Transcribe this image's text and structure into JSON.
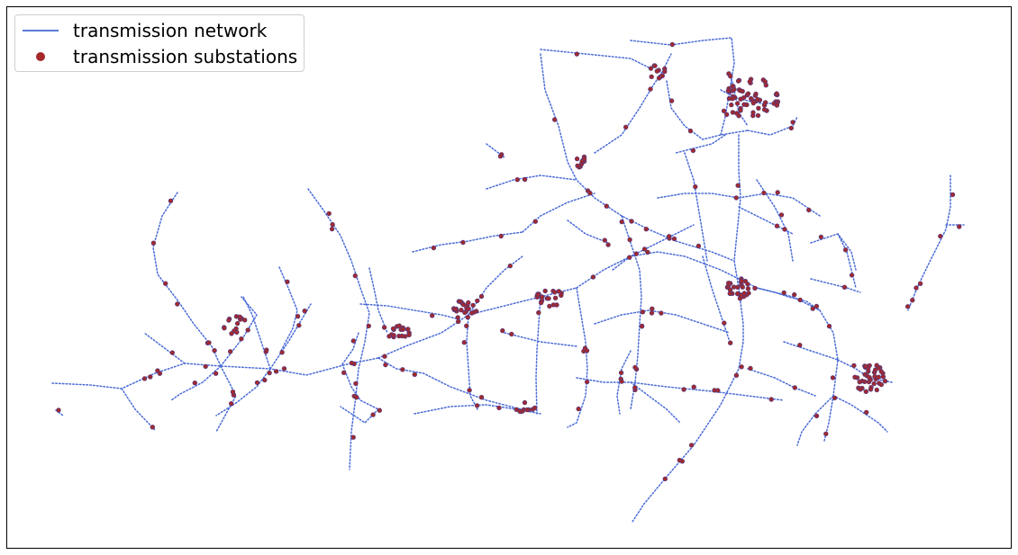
{
  "legend": {
    "line_label": "transmission network",
    "point_label": "transmission substations"
  },
  "colors": {
    "network": "#4a6bd6",
    "substation": "#a5282b",
    "substation_edge": "#5a3a7a",
    "frame": "#000000"
  }
}
